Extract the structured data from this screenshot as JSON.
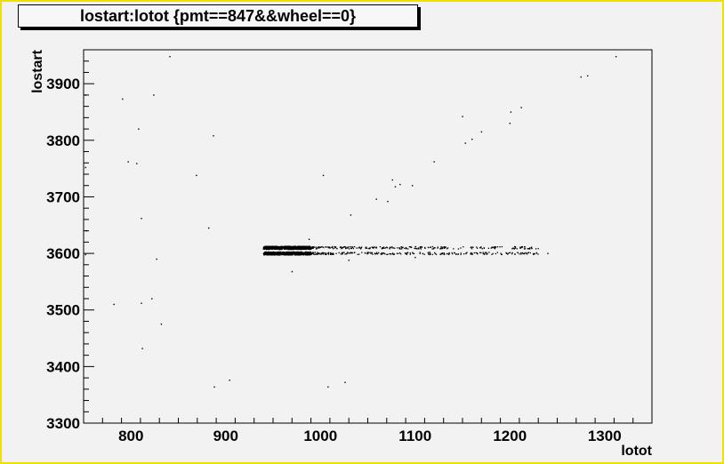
{
  "chart_data": {
    "type": "scatter",
    "title": "lostart:lotot {pmt==847&&wheel==0}",
    "xlabel": "lotot",
    "ylabel": "lostart",
    "xlim": [
      750,
      1350
    ],
    "ylim": [
      3300,
      3960
    ],
    "x_ticks": [
      800,
      900,
      1000,
      1100,
      1200,
      1300
    ],
    "y_ticks": [
      3300,
      3400,
      3500,
      3600,
      3700,
      3800,
      3900
    ],
    "grid": false,
    "legend": "none",
    "marker_color": "#000000",
    "frame_color": "#f0e000",
    "points": [
      [
        752,
        3598
      ],
      [
        753,
        3640
      ],
      [
        752,
        3752
      ],
      [
        752,
        3880
      ],
      [
        782,
        3510
      ],
      [
        791,
        3873
      ],
      [
        797,
        3762
      ],
      [
        806,
        3759
      ],
      [
        808,
        3820
      ],
      [
        811,
        3662
      ],
      [
        811,
        3512
      ],
      [
        812,
        3432
      ],
      [
        822,
        3520
      ],
      [
        824,
        3880
      ],
      [
        827,
        3590
      ],
      [
        832,
        3475
      ],
      [
        841,
        3948
      ],
      [
        869,
        3738
      ],
      [
        882,
        3645
      ],
      [
        887,
        3808
      ],
      [
        888,
        3364
      ],
      [
        904,
        3376
      ],
      [
        1003,
        3738
      ],
      [
        1008,
        3364
      ],
      [
        1026,
        3372
      ],
      [
        1032,
        3668
      ],
      [
        1059,
        3696
      ],
      [
        1071,
        3692
      ],
      [
        1076,
        3730
      ],
      [
        1079,
        3718
      ],
      [
        1084,
        3722
      ],
      [
        1097,
        3720
      ],
      [
        1120,
        3762
      ],
      [
        1150,
        3842
      ],
      [
        1153,
        3795
      ],
      [
        1160,
        3802
      ],
      [
        1170,
        3815
      ],
      [
        1200,
        3830
      ],
      [
        1201,
        3850
      ],
      [
        1212,
        3858
      ],
      [
        1275,
        3912
      ],
      [
        1282,
        3914
      ],
      [
        1312,
        3948
      ],
      [
        970,
        3568
      ],
      [
        988,
        3625
      ],
      [
        1030,
        3588
      ],
      [
        1100,
        3593
      ],
      [
        1160,
        3600
      ],
      [
        1205,
        3612
      ],
      [
        1215,
        3600
      ],
      [
        1240,
        3600
      ]
    ],
    "dense_band": {
      "x_range": [
        940,
        1230
      ],
      "core_x_range": [
        940,
        990
      ],
      "y_centers": [
        3600,
        3610
      ],
      "description_none": true
    }
  }
}
